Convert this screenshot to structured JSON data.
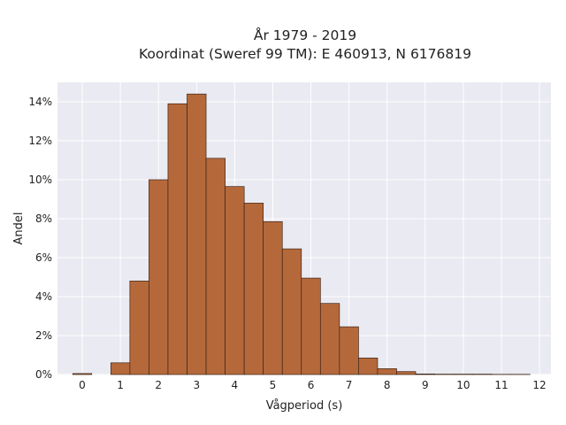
{
  "chart_data": {
    "type": "bar",
    "title_lines": [
      "År 1979 - 2019",
      "Koordinat (Sweref 99 TM): E 460913, N 6176819"
    ],
    "xlabel": "Vågperiod (s)",
    "ylabel": "Andel",
    "x_ticks": [
      "0",
      "1",
      "2",
      "3",
      "4",
      "5",
      "6",
      "7",
      "8",
      "9",
      "10",
      "11",
      "12"
    ],
    "y_ticks": [
      "0%",
      "2%",
      "4%",
      "6%",
      "8%",
      "10%",
      "12%",
      "14%"
    ],
    "y_tick_values": [
      0,
      2,
      4,
      6,
      8,
      10,
      12,
      14
    ],
    "xlim": [
      -0.65,
      12.3
    ],
    "ylim": [
      0,
      15
    ],
    "bin_width": 0.5,
    "bins": [
      {
        "x": 0.0,
        "value": 0.05
      },
      {
        "x": 0.5,
        "value": 0.0
      },
      {
        "x": 1.0,
        "value": 0.6
      },
      {
        "x": 1.5,
        "value": 4.8
      },
      {
        "x": 2.0,
        "value": 10.0
      },
      {
        "x": 2.5,
        "value": 13.9
      },
      {
        "x": 3.0,
        "value": 14.4
      },
      {
        "x": 3.5,
        "value": 11.1
      },
      {
        "x": 4.0,
        "value": 9.65
      },
      {
        "x": 4.5,
        "value": 8.8
      },
      {
        "x": 5.0,
        "value": 7.85
      },
      {
        "x": 5.5,
        "value": 6.45
      },
      {
        "x": 6.0,
        "value": 4.95
      },
      {
        "x": 6.5,
        "value": 3.65
      },
      {
        "x": 7.0,
        "value": 2.45
      },
      {
        "x": 7.5,
        "value": 0.85
      },
      {
        "x": 8.0,
        "value": 0.3
      },
      {
        "x": 8.5,
        "value": 0.15
      },
      {
        "x": 9.0,
        "value": 0.03
      },
      {
        "x": 9.5,
        "value": 0.02
      },
      {
        "x": 10.0,
        "value": 0.02
      },
      {
        "x": 10.5,
        "value": 0.02
      },
      {
        "x": 11.0,
        "value": 0.01
      },
      {
        "x": 11.5,
        "value": 0.01
      }
    ],
    "grid": true,
    "colors": {
      "bar_fill": "#b5693b",
      "bar_stroke": "#3d2415",
      "plot_bg": "#eaeaf2",
      "grid": "#ffffff"
    }
  }
}
